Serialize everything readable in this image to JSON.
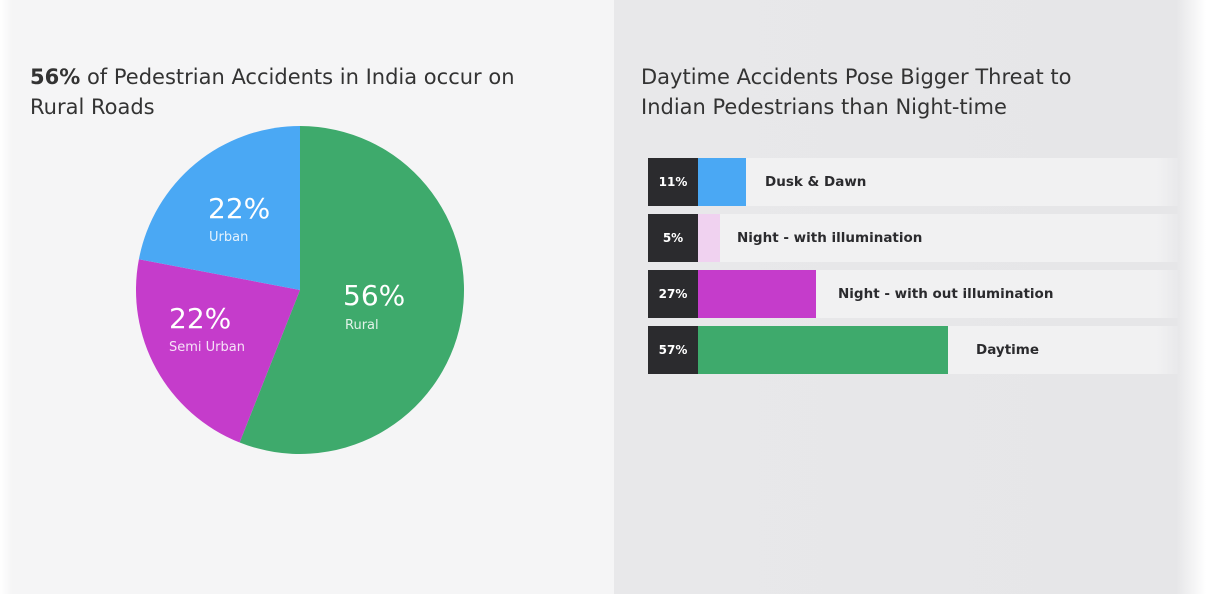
{
  "left_title": {
    "bold": "56%",
    "rest": " of Pedestrian Accidents in India occur on",
    "line2": "Rural Roads"
  },
  "right_title": {
    "line1": "Daytime Accidents Pose Bigger Threat to",
    "line2": "Indian Pedestrians than Night-time"
  },
  "colors": {
    "urban": "#4aa8f4",
    "semi_urban": "#c53ccb",
    "rural": "#3eaa6c",
    "dusk_dawn": "#4aa8f4",
    "night_illum": "#f0d2f0",
    "night_no_illum": "#c53ccb",
    "daytime": "#3eaa6c"
  },
  "chart_data": [
    {
      "type": "pie",
      "slices": [
        {
          "key": "rural",
          "label": "Rural",
          "pct_text": "56%",
          "value": 56
        },
        {
          "key": "semi_urban",
          "label": "Semi Urban",
          "pct_text": "22%",
          "value": 22
        },
        {
          "key": "urban",
          "label": "Urban",
          "pct_text": "22%",
          "value": 22
        }
      ]
    },
    {
      "type": "bar",
      "orientation": "horizontal",
      "bars": [
        {
          "key": "dusk_dawn",
          "label": "Dusk & Dawn",
          "pct_text": "11%",
          "value": 11
        },
        {
          "key": "night_illum",
          "label": "Night - with illumination",
          "pct_text": "5%",
          "value": 5
        },
        {
          "key": "night_no_illum",
          "label": "Night - with out illumination",
          "pct_text": "27%",
          "value": 27
        },
        {
          "key": "daytime",
          "label": "Daytime",
          "pct_text": "57%",
          "value": 57
        }
      ]
    }
  ]
}
